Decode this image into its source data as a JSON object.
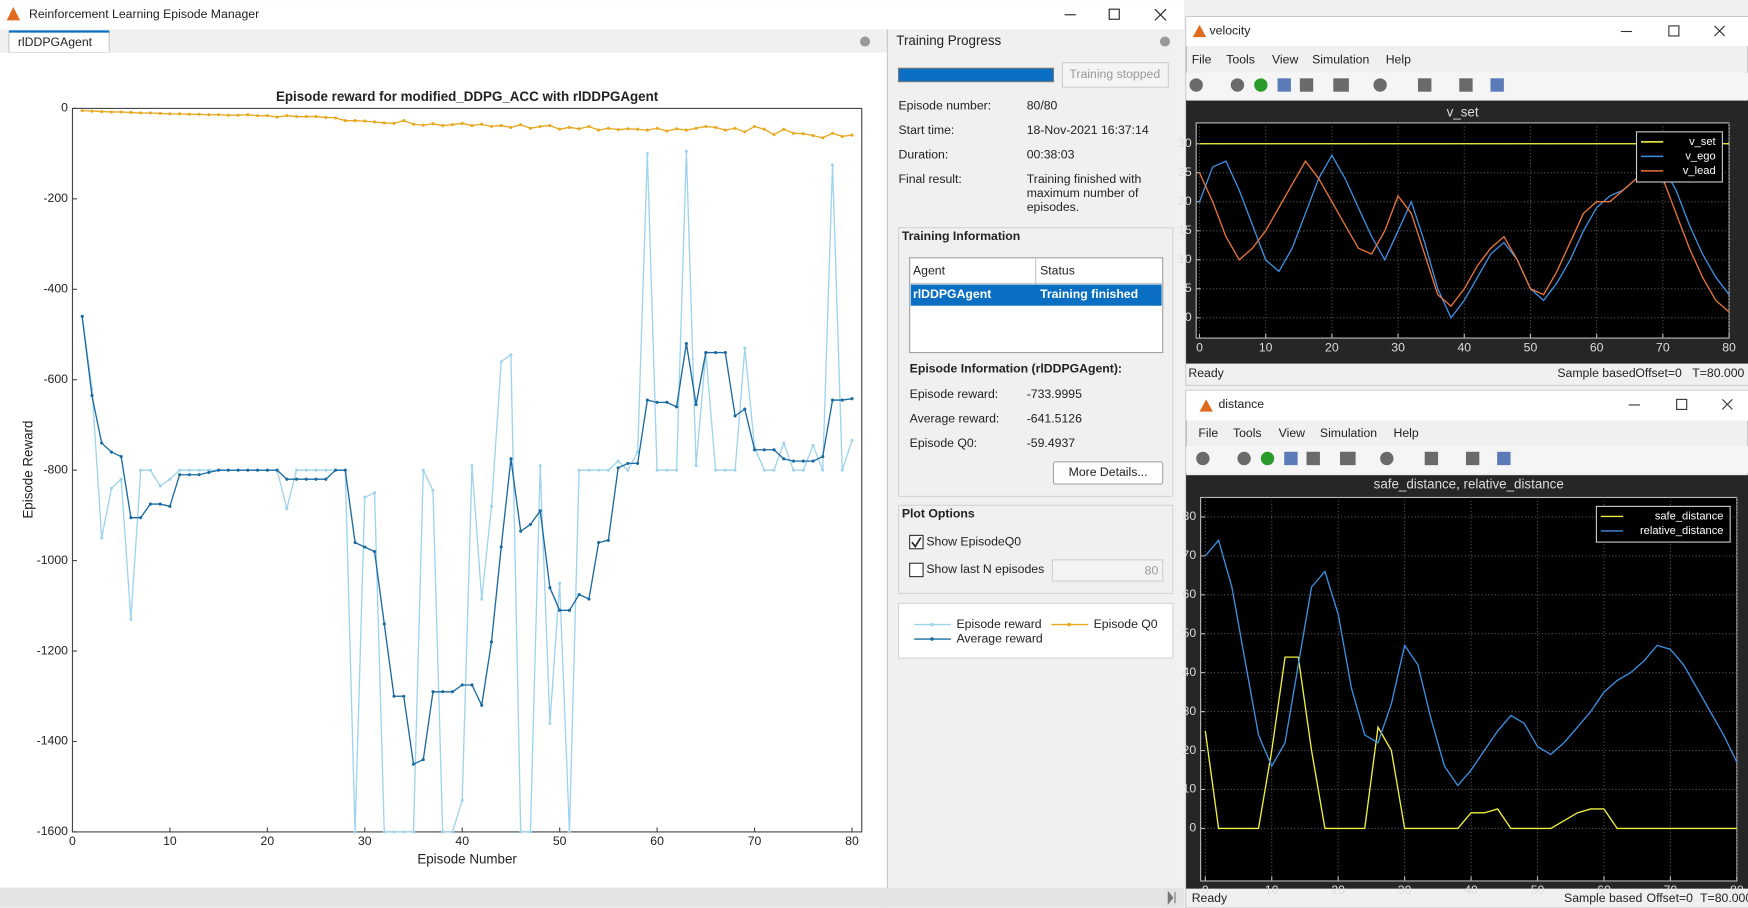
{
  "manager": {
    "window_title": "Reinforcement Learning Episode Manager",
    "tab": "rlDDPGAgent",
    "episode_chart": {
      "type": "line",
      "title": "Episode reward for modified_DDPG_ACC with rlDDPGAgent",
      "x_label": "Episode Number",
      "y_label": "Episode Reward",
      "x": [
        1,
        2,
        3,
        4,
        5,
        6,
        7,
        8,
        9,
        10,
        11,
        12,
        13,
        14,
        15,
        16,
        17,
        18,
        19,
        20,
        21,
        22,
        23,
        24,
        25,
        26,
        27,
        28,
        29,
        30,
        31,
        32,
        33,
        34,
        35,
        36,
        37,
        38,
        39,
        40,
        41,
        42,
        43,
        44,
        45,
        46,
        47,
        48,
        49,
        50,
        51,
        52,
        53,
        54,
        55,
        56,
        57,
        58,
        59,
        60,
        61,
        62,
        63,
        64,
        65,
        66,
        67,
        68,
        69,
        70,
        71,
        72,
        73,
        74,
        75,
        76,
        77,
        78,
        79,
        80
      ],
      "xlim": [
        0,
        81
      ],
      "ylim": [
        -1600,
        0
      ],
      "xticks": [
        0,
        10,
        20,
        30,
        40,
        50,
        60,
        70,
        80
      ],
      "yticks": [
        0,
        -200,
        -400,
        -600,
        -800,
        -1000,
        -1200,
        -1400,
        -1600
      ],
      "grid": false,
      "markers": true,
      "series": [
        {
          "name": "Episode reward",
          "color": "#9fd3ee",
          "values": [
            -460,
            -620,
            -950,
            -840,
            -820,
            -1130,
            -800,
            -800,
            -835,
            -820,
            -800,
            -800,
            -800,
            -800,
            -800,
            -800,
            -800,
            -800,
            -800,
            -800,
            -800,
            -885,
            -800,
            -800,
            -800,
            -800,
            -800,
            -800,
            -1600,
            -860,
            -850,
            -1600,
            -1600,
            -1600,
            -1600,
            -800,
            -845,
            -1600,
            -1600,
            -1530,
            -790,
            -1085,
            -880,
            -560,
            -545,
            -1600,
            -1600,
            -790,
            -1360,
            -1050,
            -1600,
            -800,
            -800,
            -800,
            -800,
            -780,
            -800,
            -760,
            -100,
            -800,
            -800,
            -800,
            -95,
            -790,
            -540,
            -800,
            -800,
            -800,
            -530,
            -750,
            -800,
            -800,
            -740,
            -800,
            -800,
            -745,
            -800,
            -125,
            -800,
            -734
          ]
        },
        {
          "name": "Average reward",
          "color": "#1a6aa0",
          "values": [
            -460,
            -635,
            -740,
            -760,
            -770,
            -905,
            -905,
            -875,
            -875,
            -880,
            -810,
            -810,
            -810,
            -805,
            -800,
            -800,
            -800,
            -800,
            -800,
            -800,
            -800,
            -820,
            -820,
            -820,
            -820,
            -820,
            -800,
            -800,
            -960,
            -970,
            -980,
            -1140,
            -1300,
            -1300,
            -1450,
            -1440,
            -1290,
            -1290,
            -1290,
            -1275,
            -1275,
            -1320,
            -1180,
            -970,
            -775,
            -935,
            -920,
            -890,
            -1060,
            -1110,
            -1110,
            -1075,
            -1085,
            -960,
            -955,
            -795,
            -785,
            -785,
            -645,
            -650,
            -650,
            -660,
            -520,
            -655,
            -540,
            -540,
            -540,
            -680,
            -665,
            -755,
            -755,
            -755,
            -775,
            -780,
            -780,
            -780,
            -770,
            -645,
            -645,
            -642
          ]
        },
        {
          "name": "Episode Q0",
          "color": "#e8a820",
          "values": [
            -5,
            -6,
            -7,
            -8,
            -8,
            -9,
            -10,
            -10,
            -11,
            -12,
            -12,
            -13,
            -13,
            -14,
            -14,
            -15,
            -15,
            -14,
            -16,
            -16,
            -19,
            -16,
            -18,
            -18,
            -18,
            -20,
            -21,
            -27,
            -27,
            -28,
            -30,
            -32,
            -33,
            -27,
            -35,
            -37,
            -34,
            -38,
            -36,
            -33,
            -38,
            -35,
            -40,
            -38,
            -42,
            -36,
            -44,
            -40,
            -38,
            -46,
            -42,
            -45,
            -40,
            -48,
            -44,
            -47,
            -45,
            -46,
            -48,
            -44,
            -50,
            -45,
            -48,
            -44,
            -40,
            -42,
            -48,
            -44,
            -52,
            -40,
            -46,
            -58,
            -46,
            -55,
            -56,
            -60,
            -65,
            -55,
            -62,
            -59
          ]
        }
      ]
    },
    "progress": {
      "heading": "Training Progress",
      "button": "Training stopped",
      "fields": [
        {
          "label": "Episode number:",
          "value": "80/80"
        },
        {
          "label": "Start time:",
          "value": "18-Nov-2021 16:37:14"
        },
        {
          "label": "Duration:",
          "value": "00:38:03"
        }
      ],
      "final_label": "Final result:",
      "final_lines": [
        "Training finished with",
        "maximum number of",
        "episodes."
      ]
    },
    "training_info": {
      "heading": "Training Information",
      "columns": [
        "Agent",
        "Status"
      ],
      "rows": [
        [
          "rlDDPGAgent",
          "Training finished"
        ]
      ],
      "episode_heading": "Episode Information (rlDDPGAgent):",
      "fields": [
        {
          "label": "Episode reward:",
          "value": "-733.9995"
        },
        {
          "label": "Average reward:",
          "value": "-641.5126"
        },
        {
          "label": "Episode Q0:",
          "value": "-59.4937"
        }
      ],
      "button": "More Details..."
    },
    "plot_options": {
      "heading": "Plot Options",
      "show_q0": "Show EpisodeQ0",
      "show_last": "Show last N episodes",
      "n": 80
    }
  },
  "velocity_scope": {
    "window_title": "velocity",
    "menu": [
      "File",
      "Tools",
      "View",
      "Simulation",
      "Help"
    ],
    "status": [
      "Ready",
      "Sample based",
      "Offset=0",
      "T=80.000"
    ],
    "chart": {
      "type": "line",
      "title": "v_set",
      "x": [
        0,
        2,
        4,
        6,
        8,
        10,
        12,
        14,
        16,
        18,
        20,
        22,
        24,
        26,
        28,
        30,
        32,
        34,
        36,
        38,
        40,
        42,
        44,
        46,
        48,
        50,
        52,
        54,
        56,
        58,
        60,
        62,
        64,
        66,
        68,
        70,
        72,
        74,
        76,
        78,
        80
      ],
      "xlim": [
        -0.5,
        80
      ],
      "ylim": [
        -3.5,
        33.6
      ],
      "xticks": [
        0,
        10,
        20,
        30,
        40,
        50,
        60,
        70,
        80
      ],
      "yticks": [
        0,
        5,
        10,
        15,
        20,
        25,
        30
      ],
      "grid": true,
      "legend": "upper right",
      "series": [
        {
          "name": "v_set",
          "color": "#ffff4a",
          "values": [
            30,
            30,
            30,
            30,
            30,
            30,
            30,
            30,
            30,
            30,
            30,
            30,
            30,
            30,
            30,
            30,
            30,
            30,
            30,
            30,
            30,
            30,
            30,
            30,
            30,
            30,
            30,
            30,
            30,
            30,
            30,
            30,
            30,
            30,
            30,
            30,
            30,
            30,
            30,
            30,
            30
          ]
        },
        {
          "name": "v_ego",
          "color": "#3d8fe0",
          "values": [
            20,
            26,
            27,
            22,
            16,
            10,
            8,
            12,
            18,
            24,
            28,
            24,
            19,
            14,
            10,
            15,
            20,
            13,
            5,
            0,
            3,
            7,
            11,
            13,
            10,
            5,
            3,
            6,
            10,
            15,
            19,
            21,
            22,
            24,
            25,
            26,
            22,
            16,
            11,
            7,
            4
          ]
        },
        {
          "name": "v_lead",
          "color": "#e8743a",
          "values": [
            25,
            20,
            14,
            10,
            12,
            15,
            19,
            23,
            27,
            24,
            20,
            16,
            12,
            11,
            15,
            21,
            18,
            11,
            4,
            2,
            5,
            9,
            12,
            14,
            10,
            5,
            4,
            8,
            13,
            18,
            20,
            20,
            22,
            24,
            25,
            24,
            18,
            12,
            7,
            3,
            1
          ]
        }
      ]
    }
  },
  "distance_scope": {
    "window_title": "distance",
    "menu": [
      "File",
      "Tools",
      "View",
      "Simulation",
      "Help"
    ],
    "status": [
      "Ready",
      "Sample based",
      "Offset=0",
      "T=80.000"
    ],
    "chart": {
      "type": "line",
      "title": "safe_distance, relative_distance",
      "x": [
        0,
        2,
        4,
        6,
        8,
        10,
        12,
        14,
        16,
        18,
        20,
        22,
        24,
        26,
        28,
        30,
        32,
        34,
        36,
        38,
        40,
        42,
        44,
        46,
        48,
        50,
        52,
        54,
        56,
        58,
        60,
        62,
        64,
        66,
        68,
        70,
        72,
        74,
        76,
        78,
        80
      ],
      "xlim": [
        -0.7,
        80
      ],
      "ylim": [
        -13.5,
        85
      ],
      "xticks": [
        0,
        10,
        20,
        30,
        40,
        50,
        60,
        70,
        80
      ],
      "yticks": [
        0,
        10,
        20,
        30,
        40,
        50,
        60,
        70,
        80
      ],
      "grid": true,
      "legend": "upper right",
      "series": [
        {
          "name": "safe_distance",
          "color": "#f0f03c",
          "values": [
            25,
            0,
            0,
            0,
            0,
            20,
            44,
            44,
            20,
            0,
            0,
            0,
            0,
            26,
            20,
            0,
            0,
            0,
            0,
            0,
            4,
            4,
            5,
            0,
            0,
            0,
            0,
            2,
            4,
            5,
            5,
            0,
            0,
            0,
            0,
            0,
            0,
            0,
            0,
            0,
            0
          ]
        },
        {
          "name": "relative_distance",
          "color": "#3d8fe0",
          "values": [
            70,
            74,
            62,
            43,
            24,
            16,
            22,
            42,
            62,
            66,
            55,
            36,
            24,
            22,
            32,
            47,
            42,
            28,
            16,
            11,
            15,
            20,
            25,
            29,
            27,
            21,
            19,
            22,
            26,
            30,
            35,
            38,
            40,
            43,
            47,
            46,
            42,
            36,
            30,
            24,
            17
          ]
        }
      ]
    }
  }
}
